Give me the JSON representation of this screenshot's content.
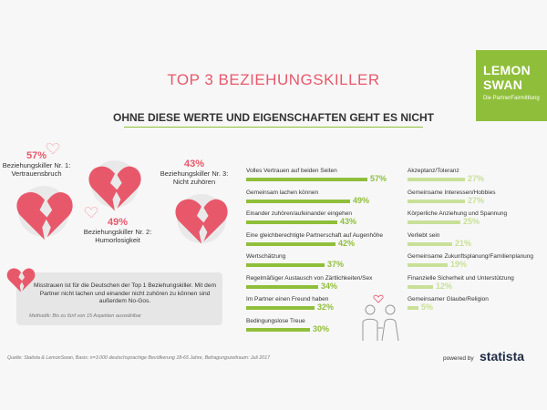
{
  "header": {
    "title": "TOP 3 BEZIEHUNGSKILLER",
    "subtitle": "OHNE DIESE WERTE UND EIGENSCHAFTEN GEHT ES NICHT"
  },
  "logo": {
    "line1": "LEMON",
    "line2": "SWAN",
    "tagline": "Die PartnerFairmittlung"
  },
  "killers": [
    {
      "pct": "57%",
      "label1": "Beziehungskiller Nr. 1:",
      "label2": "Vertrauensbruch"
    },
    {
      "pct": "49%",
      "label1": "Beziehungskiller Nr. 2:",
      "label2": "Humorlosigkeit"
    },
    {
      "pct": "43%",
      "label1": "Beziehungskiller Nr. 3:",
      "label2": "Nicht zuhören"
    }
  ],
  "note": {
    "text": "Misstrauen ist für die Deutschen der Top 1 Beziehungskiller. Mit dem Partner nicht lachen und einander nicht zuhören zu können sind außerdem No-Gos.",
    "method": "Methodik: Bis zu fünf von 15 Aspekten auswählbar"
  },
  "chart_data": {
    "type": "bar",
    "unit": "%",
    "xlim": [
      0,
      60
    ],
    "series": [
      {
        "categories": [
          "Volles Vertrauen auf beiden Seiten",
          "Gemeinsam lachen können",
          "Einander zuhören/aufeinander eingehen",
          "Eine gleichberechtigte Partnerschaft auf Augenhöhe",
          "Wertschätzung",
          "Regelmäßiger Austausch von Zärtlichkeiten/Sex",
          "Im Partner einen Freund haben",
          "Bedingungslose Treue"
        ],
        "values": [
          57,
          49,
          43,
          42,
          37,
          34,
          32,
          30
        ],
        "color": "#8fbf3a"
      },
      {
        "categories": [
          "Akzeptanz/Toleranz",
          "Gemeinsame Interessen/Hobbies",
          "Körperliche Anziehung und Spannung",
          "Verliebt sein",
          "Gemeinsame Zukunftsplanung/Familienplanung",
          "Finanzielle Sicherheit und Unterstützung",
          "Gemeinsamer Glaube/Religion"
        ],
        "values": [
          27,
          27,
          25,
          21,
          19,
          12,
          5
        ],
        "color": "#c8e098"
      }
    ]
  },
  "footer": {
    "source": "Quelle: Statista & LemonSwan, Basis: n=3.000 deutschsprachige Bevölkerung 18-65 Jahre, Befragungszeitraum: Juli 2017",
    "powered": "powered by",
    "brand": "statista"
  }
}
